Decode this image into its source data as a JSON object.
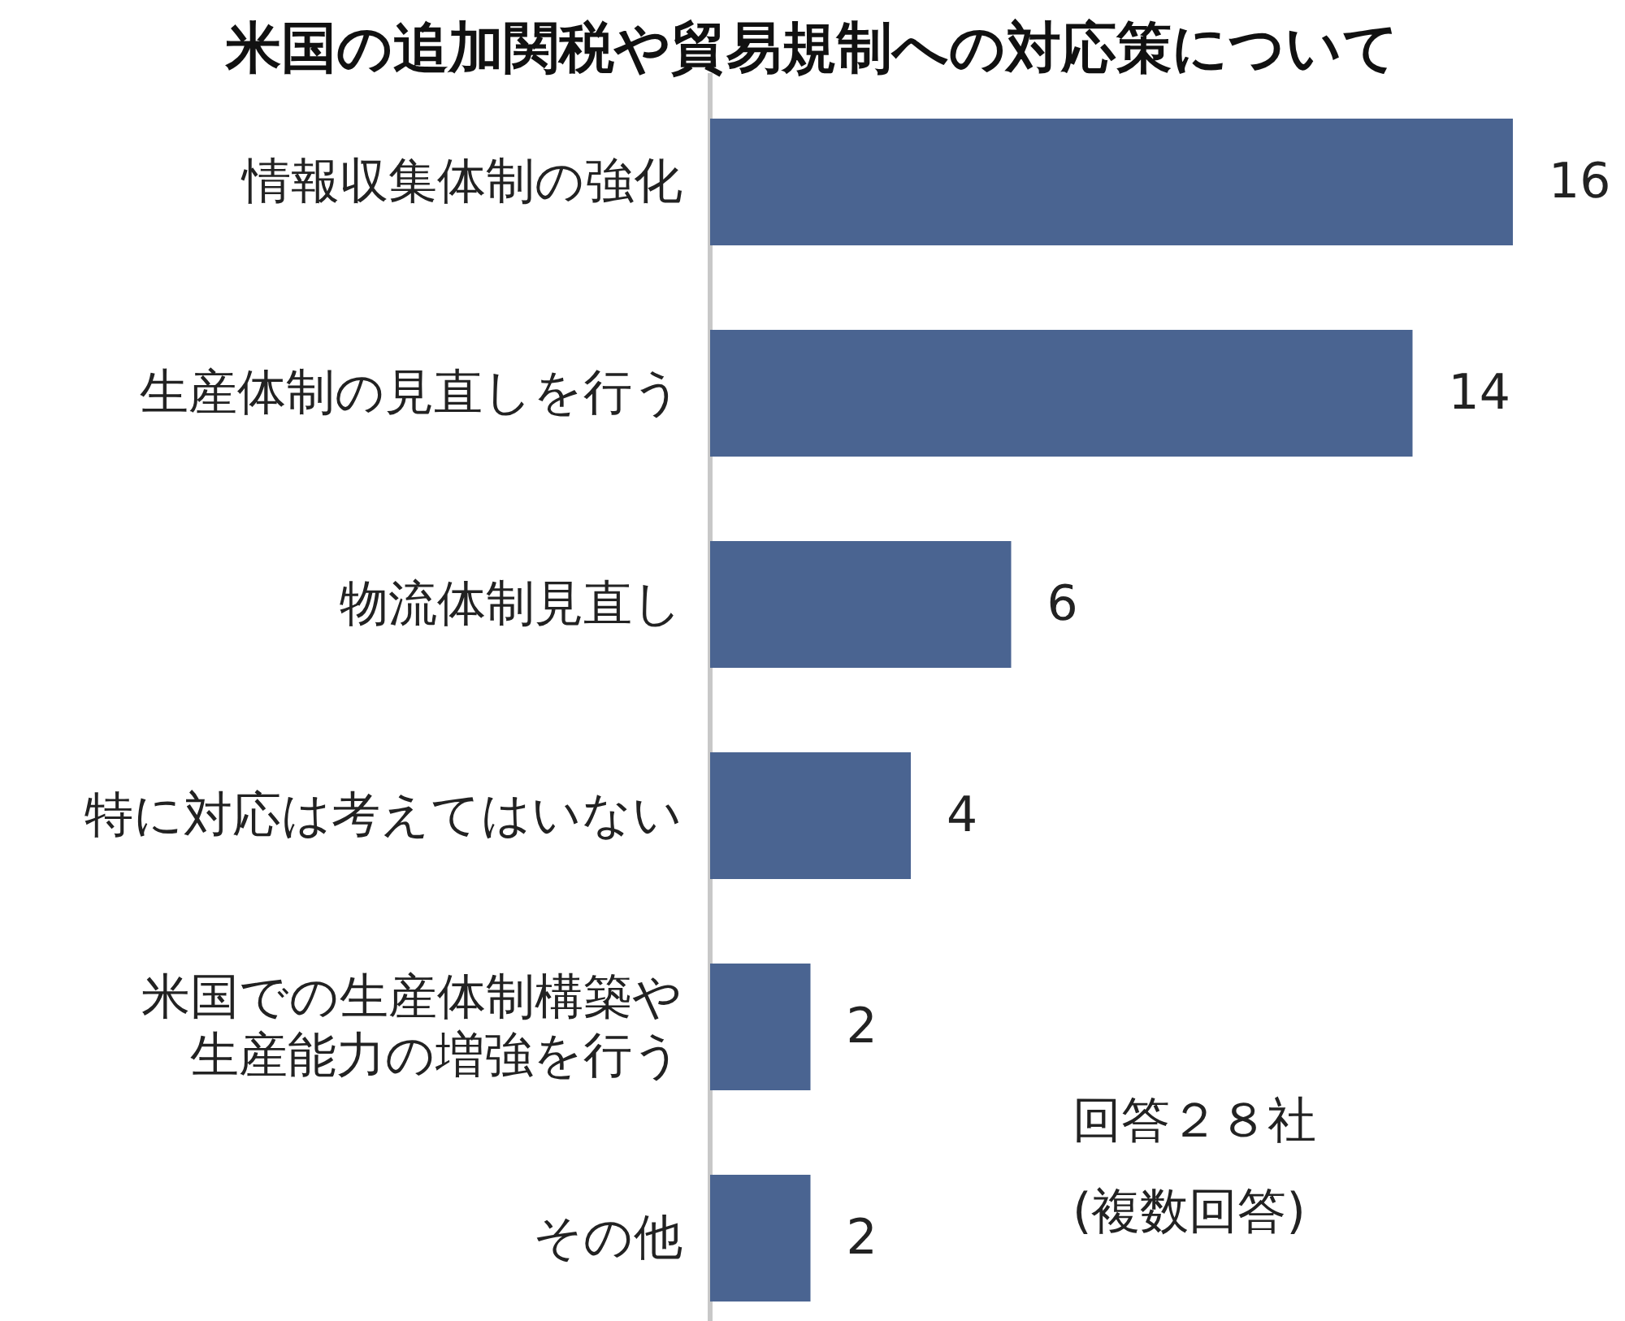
{
  "chart_data": {
    "type": "bar",
    "orientation": "horizontal",
    "title": "米国の追加関税や貿易規制への対応策について",
    "categories": [
      "情報収集体制の強化",
      "生産体制の見直しを行う",
      "物流体制見直し",
      "特に対応は考えてはいない",
      "米国での生産体制構築や生産能力の増強を行う",
      "その他"
    ],
    "values": [
      16,
      14,
      6,
      4,
      2,
      2
    ],
    "color": "#4a6491",
    "data_labels": true,
    "annotations": [
      "回答２８社",
      "(複数回答)"
    ]
  }
}
